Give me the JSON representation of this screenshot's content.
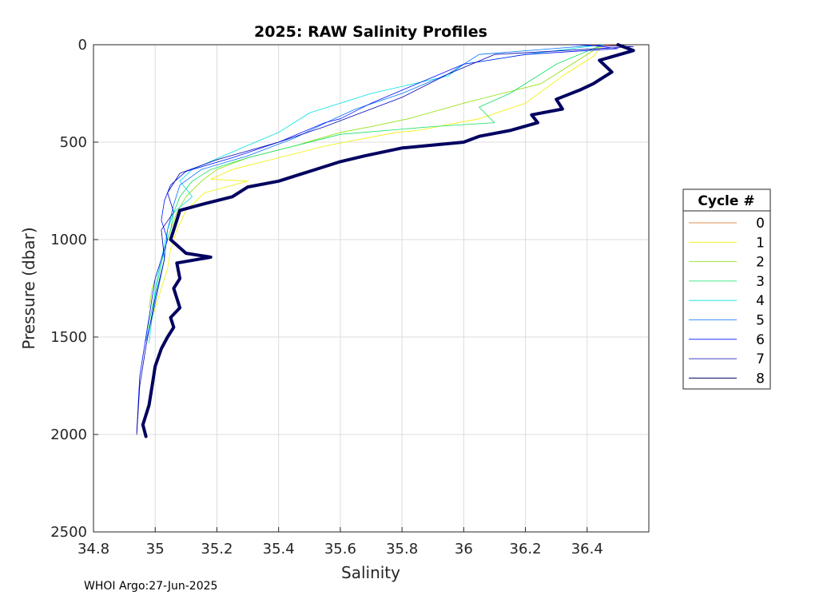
{
  "chart_data": {
    "type": "line",
    "title": "2025: RAW Salinity Profiles",
    "xlabel": "Salinity",
    "ylabel": "Pressure (dbar)",
    "xlim": [
      34.8,
      36.6
    ],
    "ylim": [
      0,
      2500
    ],
    "y_reversed": true,
    "grid": true,
    "x_ticks": [
      "34.8",
      "35",
      "35.2",
      "35.4",
      "35.6",
      "35.8",
      "36",
      "36.2",
      "36.4"
    ],
    "x_tick_values": [
      34.8,
      35.0,
      35.2,
      35.4,
      35.6,
      35.8,
      36.0,
      36.2,
      36.4
    ],
    "y_ticks": [
      "0",
      "500",
      "1000",
      "1500",
      "2000",
      "2500"
    ],
    "y_tick_values": [
      0,
      500,
      1000,
      1500,
      2000,
      2500
    ],
    "legend": {
      "title": "Cycle #",
      "position": "right-outside",
      "entries": [
        "0",
        "1",
        "2",
        "3",
        "4",
        "5",
        "6",
        "7",
        "8"
      ]
    },
    "series": [
      {
        "name": "0",
        "color": "#d96a1a",
        "width": 0.8,
        "x": [
          36.4,
          36.5,
          36.52
        ],
        "y": [
          0,
          3,
          6
        ]
      },
      {
        "name": "1",
        "color": "#f0f000",
        "width": 0.8,
        "x": [
          36.45,
          36.42,
          36.33,
          36.2,
          36.05,
          35.85,
          35.78,
          35.55,
          35.35,
          35.25,
          35.18,
          35.3,
          35.16,
          35.1,
          35.07,
          35.05,
          35.04,
          35.02,
          35.0,
          34.98
        ],
        "y": [
          0,
          60,
          150,
          300,
          380,
          440,
          450,
          520,
          600,
          640,
          690,
          700,
          760,
          850,
          950,
          1050,
          1150,
          1250,
          1350,
          1450
        ]
      },
      {
        "name": "2",
        "color": "#8ce000",
        "width": 0.8,
        "x": [
          36.45,
          36.35,
          36.25,
          36.0,
          35.82,
          35.7,
          35.6,
          35.45,
          35.3,
          35.2,
          35.15,
          35.1,
          35.07,
          35.05,
          35.03,
          35.01,
          34.99,
          34.98
        ],
        "y": [
          0,
          100,
          200,
          300,
          380,
          420,
          450,
          520,
          580,
          640,
          700,
          780,
          860,
          950,
          1050,
          1150,
          1250,
          1350
        ]
      },
      {
        "name": "3",
        "color": "#10e060",
        "width": 0.8,
        "x": [
          36.45,
          36.3,
          36.15,
          36.05,
          36.1,
          35.9,
          35.6,
          35.45,
          35.3,
          35.18,
          35.12,
          35.08,
          35.06,
          35.05,
          35.03,
          35.01,
          34.99,
          34.97
        ],
        "y": [
          0,
          100,
          250,
          320,
          400,
          420,
          460,
          520,
          580,
          640,
          700,
          780,
          860,
          950,
          1050,
          1200,
          1350,
          1500
        ]
      },
      {
        "name": "4",
        "color": "#00e0e0",
        "width": 0.8,
        "x": [
          36.45,
          36.2,
          36.0,
          35.95,
          35.7,
          35.5,
          35.4,
          35.25,
          35.12,
          35.08,
          35.12,
          35.06,
          35.04,
          35.02,
          35.0,
          34.99,
          34.98
        ],
        "y": [
          0,
          50,
          100,
          160,
          250,
          350,
          450,
          550,
          640,
          700,
          780,
          860,
          950,
          1100,
          1250,
          1400,
          1530
        ]
      },
      {
        "name": "5",
        "color": "#0070ff",
        "width": 0.8,
        "x": [
          36.45,
          36.05,
          35.95,
          35.8,
          35.65,
          35.58,
          35.45,
          35.3,
          35.15,
          35.08,
          35.06,
          35.04,
          35.03,
          35.01,
          34.99,
          34.97
        ],
        "y": [
          0,
          50,
          150,
          250,
          330,
          380,
          480,
          570,
          640,
          720,
          820,
          950,
          1100,
          1250,
          1400,
          1520
        ]
      },
      {
        "name": "6",
        "color": "#0010ff",
        "width": 0.8,
        "x": [
          36.4,
          36.5,
          36.2,
          36.0,
          35.85,
          35.7,
          35.6,
          35.55,
          35.4,
          35.25,
          35.1,
          35.05,
          35.03,
          35.02,
          35.04,
          35.0,
          34.97,
          34.95,
          34.94
        ],
        "y": [
          0,
          20,
          50,
          100,
          200,
          300,
          380,
          400,
          500,
          580,
          650,
          720,
          800,
          900,
          1000,
          1200,
          1500,
          1700,
          1990
        ]
      },
      {
        "name": "7",
        "color": "#0000b0",
        "width": 0.8,
        "x": [
          36.35,
          36.55,
          36.1,
          35.95,
          35.8,
          35.65,
          35.55,
          35.4,
          35.2,
          35.08,
          35.04,
          35.06,
          35.02,
          35.03,
          35.0,
          34.97,
          34.95,
          34.94
        ],
        "y": [
          0,
          10,
          50,
          150,
          270,
          360,
          420,
          500,
          590,
          660,
          760,
          860,
          950,
          1100,
          1300,
          1550,
          1750,
          2000
        ]
      },
      {
        "name": "8",
        "color": "#000060",
        "width": 4,
        "x": [
          36.5,
          36.55,
          36.44,
          36.48,
          36.42,
          36.38,
          36.3,
          36.32,
          36.22,
          36.24,
          36.15,
          36.05,
          36.0,
          35.8,
          35.68,
          35.6,
          35.5,
          35.4,
          35.3,
          35.25,
          35.15,
          35.08,
          35.07,
          35.06,
          35.05,
          35.1,
          35.18,
          35.07,
          35.08,
          35.06,
          35.08,
          35.05,
          35.06,
          35.04,
          35.02,
          35.0,
          34.99,
          34.98,
          34.96,
          34.97
        ],
        "y": [
          0,
          30,
          80,
          140,
          200,
          230,
          280,
          330,
          360,
          400,
          440,
          470,
          500,
          530,
          570,
          600,
          650,
          700,
          730,
          780,
          820,
          850,
          900,
          950,
          1000,
          1070,
          1090,
          1120,
          1200,
          1250,
          1350,
          1400,
          1450,
          1500,
          1560,
          1650,
          1750,
          1850,
          1950,
          2010
        ]
      }
    ]
  },
  "footer": {
    "text": "WHOI Argo:27-Jun-2025"
  }
}
